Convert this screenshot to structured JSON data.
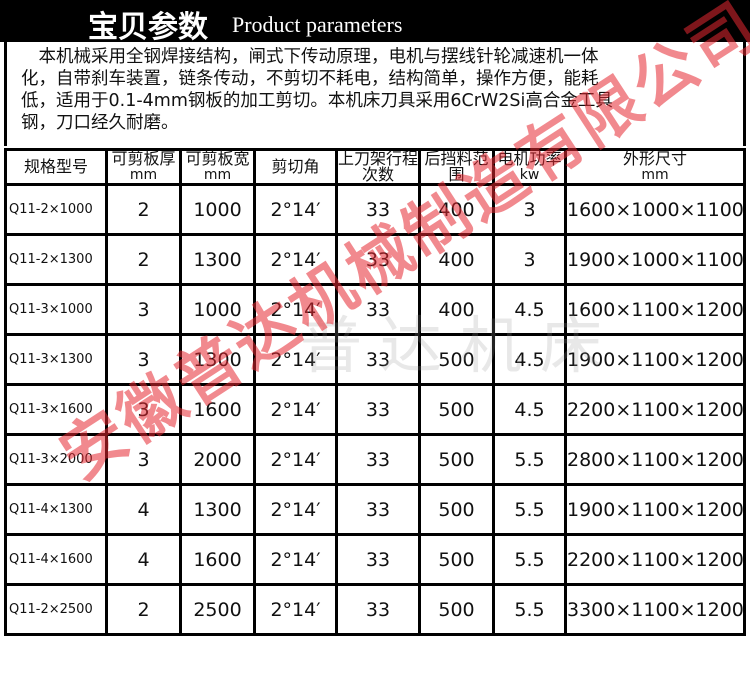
{
  "header": {
    "title_cn": "宝贝参数",
    "title_en": "Product parameters"
  },
  "description": "本机械采用全钢焊接结构，闸式下传动原理，电机与摆线针轮减速机一体化，自带刹车装置，链条传动，不剪切不耗电，结构简单，操作方便，能耗低，适用于0.1-4mm钢板的加工剪切。本机床刀具采用6CrW2Si高合金工具钢，刀口经久耐磨。",
  "table": {
    "headers": [
      {
        "label": "规格型号",
        "unit": ""
      },
      {
        "label": "可剪板厚",
        "unit": "mm"
      },
      {
        "label": "可剪板宽",
        "unit": "mm"
      },
      {
        "label": "剪切角",
        "unit": ""
      },
      {
        "label": "上刀架行程次数",
        "unit": ""
      },
      {
        "label": "后挡料范围",
        "unit": ""
      },
      {
        "label": "电机功率",
        "unit": "kw"
      },
      {
        "label": "外形尺寸",
        "unit": "mm"
      }
    ],
    "rows": [
      [
        "Q11-2×1000",
        "2",
        "1000",
        "2°14′",
        "33",
        "400",
        "3",
        "1600×1000×1100"
      ],
      [
        "Q11-2×1300",
        "2",
        "1300",
        "2°14′",
        "33",
        "400",
        "3",
        "1900×1000×1100"
      ],
      [
        "Q11-3×1000",
        "3",
        "1000",
        "2°14′",
        "33",
        "400",
        "4.5",
        "1600×1100×1200"
      ],
      [
        "Q11-3×1300",
        "3",
        "1300",
        "2°14′",
        "33",
        "500",
        "4.5",
        "1900×1100×1200"
      ],
      [
        "Q11-3×1600",
        "3",
        "1600",
        "2°14′",
        "33",
        "500",
        "4.5",
        "2200×1100×1200"
      ],
      [
        "Q11-3×2000",
        "3",
        "2000",
        "2°14′",
        "33",
        "500",
        "5.5",
        "2800×1100×1200"
      ],
      [
        "Q11-4×1300",
        "4",
        "1300",
        "2°14′",
        "33",
        "500",
        "5.5",
        "1900×1100×1200"
      ],
      [
        "Q11-4×1600",
        "4",
        "1600",
        "2°14′",
        "33",
        "500",
        "5.5",
        "2200×1100×1200"
      ],
      [
        "Q11-2×2500",
        "2",
        "2500",
        "2°14′",
        "33",
        "500",
        "5.5",
        "3300×1100×1200"
      ]
    ]
  },
  "watermarks": {
    "red": "安徽普达机械制造有限公司",
    "gray": "普达机床"
  }
}
